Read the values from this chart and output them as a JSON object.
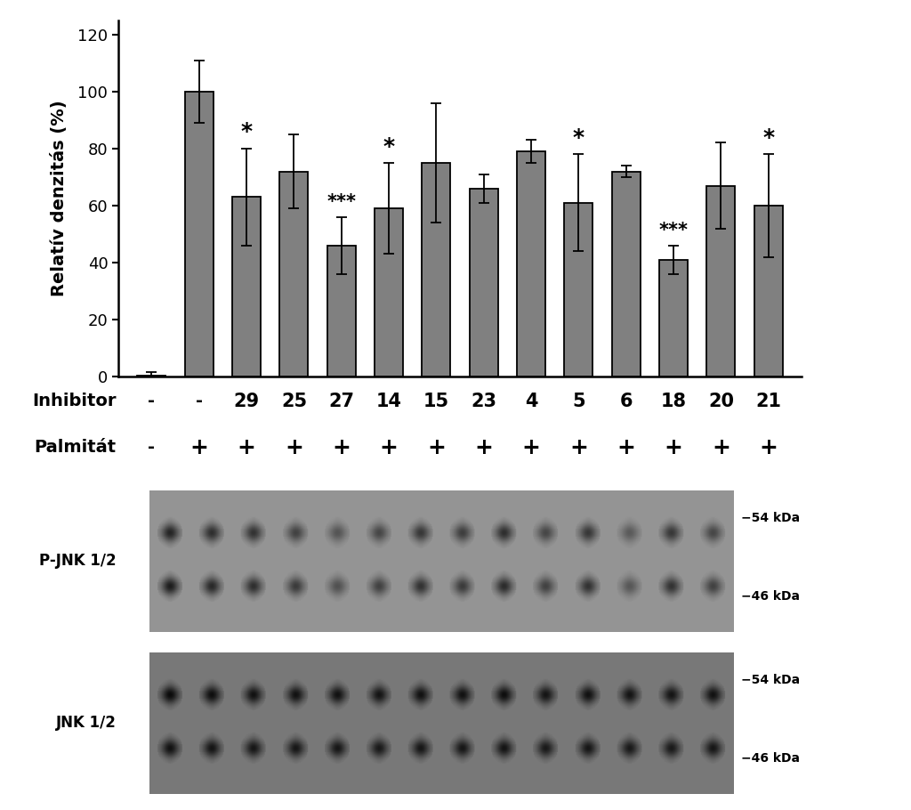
{
  "bar_values": [
    0.5,
    100,
    63,
    72,
    46,
    59,
    75,
    66,
    79,
    61,
    72,
    41,
    67,
    60
  ],
  "bar_errors": [
    1.0,
    11,
    17,
    13,
    10,
    16,
    21,
    5,
    4,
    17,
    2,
    5,
    15,
    18
  ],
  "bar_color": "#808080",
  "bar_edge_color": "#000000",
  "ylabel": "Relatív denzitás (%)",
  "ylim": [
    0,
    125
  ],
  "yticks": [
    0,
    20,
    40,
    60,
    80,
    100,
    120
  ],
  "significance": [
    "",
    "",
    "*",
    "",
    "***",
    "*",
    "",
    "",
    "",
    "*",
    "",
    "***",
    "",
    "*"
  ],
  "inhibitor_labels": [
    "-",
    "-",
    "29",
    "25",
    "27",
    "14",
    "15",
    "23",
    "4",
    "5",
    "6",
    "18",
    "20",
    "21"
  ],
  "palmitat_labels": [
    "-",
    "+",
    "+",
    "+",
    "+",
    "+",
    "+",
    "+",
    "+",
    "+",
    "+",
    "+",
    "+",
    "+"
  ],
  "label_inhibitor": "Inhibitor",
  "label_palmitat": "Palmitát",
  "label_pjnk": "P-JNK 1/2",
  "label_jnk": "JNK 1/2",
  "label_54kda": "−54 kDa",
  "label_46kda": "−46 kDa",
  "background_color": "#ffffff",
  "bar_width": 0.6,
  "n_bars": 14,
  "wb1_bg": [
    148,
    148,
    148
  ],
  "wb2_bg": [
    120,
    120,
    120
  ],
  "wb1_band_upper_intensity": [
    0.75,
    0.68,
    0.65,
    0.55,
    0.42,
    0.52,
    0.62,
    0.58,
    0.68,
    0.52,
    0.62,
    0.38,
    0.62,
    0.52
  ],
  "wb1_band_lower_intensity": [
    0.8,
    0.72,
    0.68,
    0.6,
    0.45,
    0.55,
    0.65,
    0.6,
    0.7,
    0.55,
    0.65,
    0.4,
    0.65,
    0.55
  ],
  "wb2_band_upper_intensity": [
    0.9,
    0.88,
    0.85,
    0.85,
    0.85,
    0.82,
    0.85,
    0.85,
    0.88,
    0.82,
    0.85,
    0.82,
    0.82,
    0.85
  ],
  "wb2_band_lower_intensity": [
    0.85,
    0.82,
    0.8,
    0.8,
    0.8,
    0.78,
    0.8,
    0.8,
    0.82,
    0.78,
    0.8,
    0.78,
    0.78,
    0.8
  ]
}
